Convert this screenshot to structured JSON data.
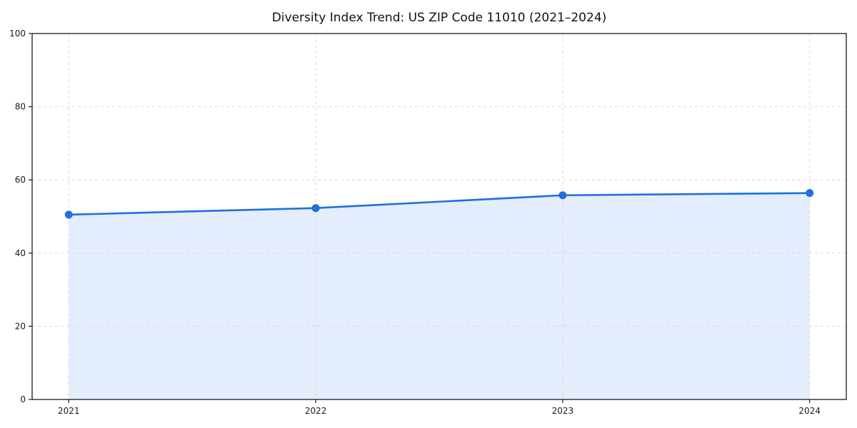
{
  "chart_data": {
    "type": "area",
    "title": "Diversity Index Trend: US ZIP Code 11010 (2021–2024)",
    "categories": [
      "2021",
      "2022",
      "2023",
      "2024"
    ],
    "series": [
      {
        "name": "Diversity Index",
        "values": [
          50.5,
          52.3,
          55.8,
          56.4
        ]
      }
    ],
    "xlabel": "",
    "ylabel": "",
    "ylim": [
      0,
      100
    ],
    "yticks": [
      0,
      20,
      40,
      60,
      80,
      100
    ],
    "grid": true,
    "grid_style": "dashed",
    "legend": "none",
    "colors": {
      "line": "#1f6fe0",
      "marker": "#1f6fe0",
      "fill": "#1f6fe0",
      "fill_opacity": 0.12,
      "grid": "#d9d9d9",
      "frame": "#1a1a1a",
      "tick_text": "#1a1a1a",
      "background": "#ffffff"
    }
  }
}
